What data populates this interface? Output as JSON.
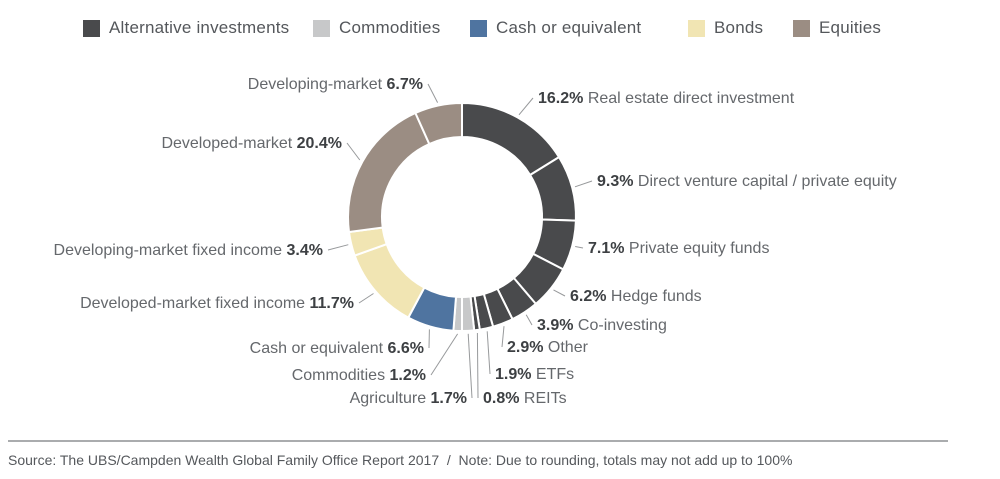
{
  "legend": {
    "items": [
      {
        "label": "Alternative investments",
        "color": "#494a4c"
      },
      {
        "label": "Commodities",
        "color": "#c7c8c9"
      },
      {
        "label": "Cash or equivalent",
        "color": "#4f74a0"
      },
      {
        "label": "Bonds",
        "color": "#f1e5b3"
      },
      {
        "label": "Equities",
        "color": "#9b8d83"
      }
    ]
  },
  "chart_data": {
    "type": "donut",
    "title": "",
    "direction": "clockwise",
    "start_angle_deg": 0,
    "total": 100,
    "legend_position": "top",
    "category_colors": {
      "Alternative investments": "#494a4c",
      "Commodities": "#c7c8c9",
      "Cash or equivalent": "#4f74a0",
      "Bonds": "#f1e5b3",
      "Equities": "#9b8d83"
    },
    "segments": [
      {
        "label": "Real estate direct investment",
        "value": 16.2,
        "pct_label": "16.2%",
        "category": "Alternative investments"
      },
      {
        "label": "Direct venture capital / private equity",
        "value": 9.3,
        "pct_label": "9.3%",
        "category": "Alternative investments"
      },
      {
        "label": "Private equity funds",
        "value": 7.1,
        "pct_label": "7.1%",
        "category": "Alternative investments"
      },
      {
        "label": "Hedge funds",
        "value": 6.2,
        "pct_label": "6.2%",
        "category": "Alternative investments"
      },
      {
        "label": "Co-investing",
        "value": 3.9,
        "pct_label": "3.9%",
        "category": "Alternative investments"
      },
      {
        "label": "Other",
        "value": 2.9,
        "pct_label": "2.9%",
        "category": "Alternative investments"
      },
      {
        "label": "ETFs",
        "value": 1.9,
        "pct_label": "1.9%",
        "category": "Alternative investments"
      },
      {
        "label": "REITs",
        "value": 0.8,
        "pct_label": "0.8%",
        "category": "Alternative investments"
      },
      {
        "label": "Agriculture",
        "value": 1.7,
        "pct_label": "1.7%",
        "category": "Commodities"
      },
      {
        "label": "Commodities",
        "value": 1.2,
        "pct_label": "1.2%",
        "category": "Commodities"
      },
      {
        "label": "Cash or equivalent",
        "value": 6.6,
        "pct_label": "6.6%",
        "category": "Cash or equivalent"
      },
      {
        "label": "Developed-market fixed income",
        "value": 11.7,
        "pct_label": "11.7%",
        "category": "Bonds"
      },
      {
        "label": "Developing-market fixed income",
        "value": 3.4,
        "pct_label": "3.4%",
        "category": "Bonds"
      },
      {
        "label": "Developed-market",
        "value": 20.4,
        "pct_label": "20.4%",
        "category": "Equities"
      },
      {
        "label": "Developing-market",
        "value": 6.7,
        "pct_label": "6.7%",
        "category": "Equities"
      }
    ]
  },
  "footer": {
    "source": "Source: The UBS/Campden Wealth Global Family Office Report 2017  /  Note: Due to rounding, totals may not add up to 100%"
  }
}
